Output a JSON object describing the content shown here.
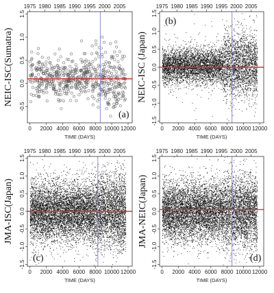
{
  "figure": {
    "panels": [
      {
        "label": "(a)",
        "ylabel": "NEIC-ISC(Sumatra)",
        "xlabel": "TIME (DAYS)"
      },
      {
        "label": "(b)",
        "ylabel": "NEIC-ISC (Japan)",
        "xlabel": "TIME (DAYS)"
      },
      {
        "label": "(c)",
        "ylabel": "JMA-ISC(Japan)",
        "xlabel": "TIME (DAYS)"
      },
      {
        "label": "(d)",
        "ylabel": "JMA-NEIC(Japan)",
        "xlabel": "TIME (DAYS)"
      }
    ]
  },
  "colors": {
    "reference_line": "#e03030",
    "marker_line": "#8a8ae0",
    "points": "#111111",
    "points_open": "#555555",
    "frame": "#333333"
  },
  "chart_data": [
    {
      "type": "scatter",
      "panel_label": "(a)",
      "ylabel": "NEIC-ISC(Sumatra)",
      "xlabel": "TIME (DAYS)",
      "xlim": [
        -300,
        12500
      ],
      "ylim": [
        -0.85,
        1.55
      ],
      "x_ticks": [
        0,
        2000,
        4000,
        6000,
        8000,
        10000,
        12000
      ],
      "y_ticks": [
        -0.5,
        0.0,
        0.5,
        1.0,
        1.5
      ],
      "top_axis_ticks": [
        "1975",
        "1980",
        "1985",
        "1990",
        "1995",
        "2000",
        "2005"
      ],
      "top_axis_positions": [
        0,
        1826,
        3652,
        5478,
        7305,
        9131,
        10957
      ],
      "reference_line_y": 0.1,
      "marker_line_x": 8600,
      "marker": "open-circle",
      "n_points": 620,
      "seed": 11,
      "y_base": 0.1,
      "y_spread": 0.22,
      "y_spread_late": 0.32,
      "grid": false
    },
    {
      "type": "scatter",
      "panel_label": "(b)",
      "ylabel": "NEIC-ISC (Japan)",
      "xlabel": "TIME (DAYS)",
      "xlim": [
        -300,
        12500
      ],
      "ylim": [
        -1.55,
        1.55
      ],
      "x_ticks": [
        0,
        2000,
        4000,
        6000,
        8000,
        10000,
        12000
      ],
      "y_ticks": [
        -1.5,
        -1.0,
        -0.5,
        0.0,
        0.5,
        1.0,
        1.5
      ],
      "top_axis_ticks": [
        "1975",
        "1980",
        "1985",
        "1990",
        "1995",
        "2000",
        "2005"
      ],
      "top_axis_positions": [
        0,
        1826,
        3652,
        5478,
        7305,
        9131,
        10957
      ],
      "reference_line_y": 0.0,
      "marker_line_x": 8600,
      "marker": "dot",
      "n_points": 6500,
      "seed": 23,
      "y_base": 0.05,
      "y_spread": 0.24,
      "y_spread_late": 0.45,
      "grid": false
    },
    {
      "type": "scatter",
      "panel_label": "(c)",
      "ylabel": "JMA-ISC(Japan)",
      "xlabel": "TIME (DAYS)",
      "xlim": [
        -300,
        12500
      ],
      "ylim": [
        -1.55,
        1.55
      ],
      "x_ticks": [
        0,
        2000,
        4000,
        6000,
        8000,
        10000,
        12000
      ],
      "y_ticks": [
        -1.5,
        -1.0,
        -0.5,
        0.0,
        0.5,
        1.0,
        1.5
      ],
      "top_axis_ticks": [
        "1975",
        "1980",
        "1985",
        "1990",
        "1995",
        "2000",
        "2005"
      ],
      "top_axis_positions": [
        0,
        1826,
        3652,
        5478,
        7305,
        9131,
        10957
      ],
      "reference_line_y": 0.0,
      "marker_line_x": 8300,
      "marker": "dot",
      "n_points": 9000,
      "seed": 37,
      "y_base": 0.0,
      "y_spread": 0.42,
      "y_spread_late": 0.5,
      "grid": false
    },
    {
      "type": "scatter",
      "panel_label": "(d)",
      "ylabel": "JMA-NEIC(Japan)",
      "xlabel": "TIME (DAYS)",
      "xlim": [
        -300,
        12500
      ],
      "ylim": [
        -1.55,
        1.55
      ],
      "x_ticks": [
        0,
        2000,
        4000,
        6000,
        8000,
        10000,
        12000
      ],
      "y_ticks": [
        -1.5,
        -1.0,
        -0.5,
        0.0,
        0.5,
        1.0,
        1.5
      ],
      "top_axis_ticks": [
        "1975",
        "1980",
        "1985",
        "1990",
        "1995",
        "2000",
        "2005"
      ],
      "top_axis_positions": [
        0,
        1826,
        3652,
        5478,
        7305,
        9131,
        10957
      ],
      "reference_line_y": 0.05,
      "marker_line_x": 8600,
      "marker": "dot",
      "n_points": 8500,
      "seed": 51,
      "y_base": 0.0,
      "y_spread": 0.42,
      "y_spread_late": 0.5,
      "grid": false
    }
  ]
}
